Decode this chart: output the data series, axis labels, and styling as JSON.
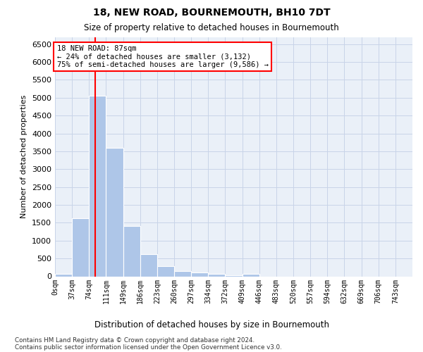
{
  "title": "18, NEW ROAD, BOURNEMOUTH, BH10 7DT",
  "subtitle": "Size of property relative to detached houses in Bournemouth",
  "xlabel": "Distribution of detached houses by size in Bournemouth",
  "ylabel": "Number of detached properties",
  "footnote1": "Contains HM Land Registry data © Crown copyright and database right 2024.",
  "footnote2": "Contains public sector information licensed under the Open Government Licence v3.0.",
  "bar_labels": [
    "0sqm",
    "37sqm",
    "74sqm",
    "111sqm",
    "149sqm",
    "186sqm",
    "223sqm",
    "260sqm",
    "297sqm",
    "334sqm",
    "372sqm",
    "409sqm",
    "446sqm",
    "483sqm",
    "520sqm",
    "557sqm",
    "594sqm",
    "632sqm",
    "669sqm",
    "706sqm",
    "743sqm"
  ],
  "bar_heights": [
    70,
    1620,
    5060,
    3600,
    1400,
    620,
    290,
    150,
    105,
    75,
    30,
    60,
    0,
    0,
    0,
    0,
    0,
    0,
    0,
    0,
    0
  ],
  "bar_color": "#aec6e8",
  "grid_color": "#c8d4e8",
  "bg_color": "#eaf0f8",
  "ylim_max": 6700,
  "yticks": [
    0,
    500,
    1000,
    1500,
    2000,
    2500,
    3000,
    3500,
    4000,
    4500,
    5000,
    5500,
    6000,
    6500
  ],
  "annotation_text": "18 NEW ROAD: 87sqm\n← 24% of detached houses are smaller (3,132)\n75% of semi-detached houses are larger (9,586) →",
  "property_sqm": 87,
  "bin_width": 37,
  "n_bins": 21
}
